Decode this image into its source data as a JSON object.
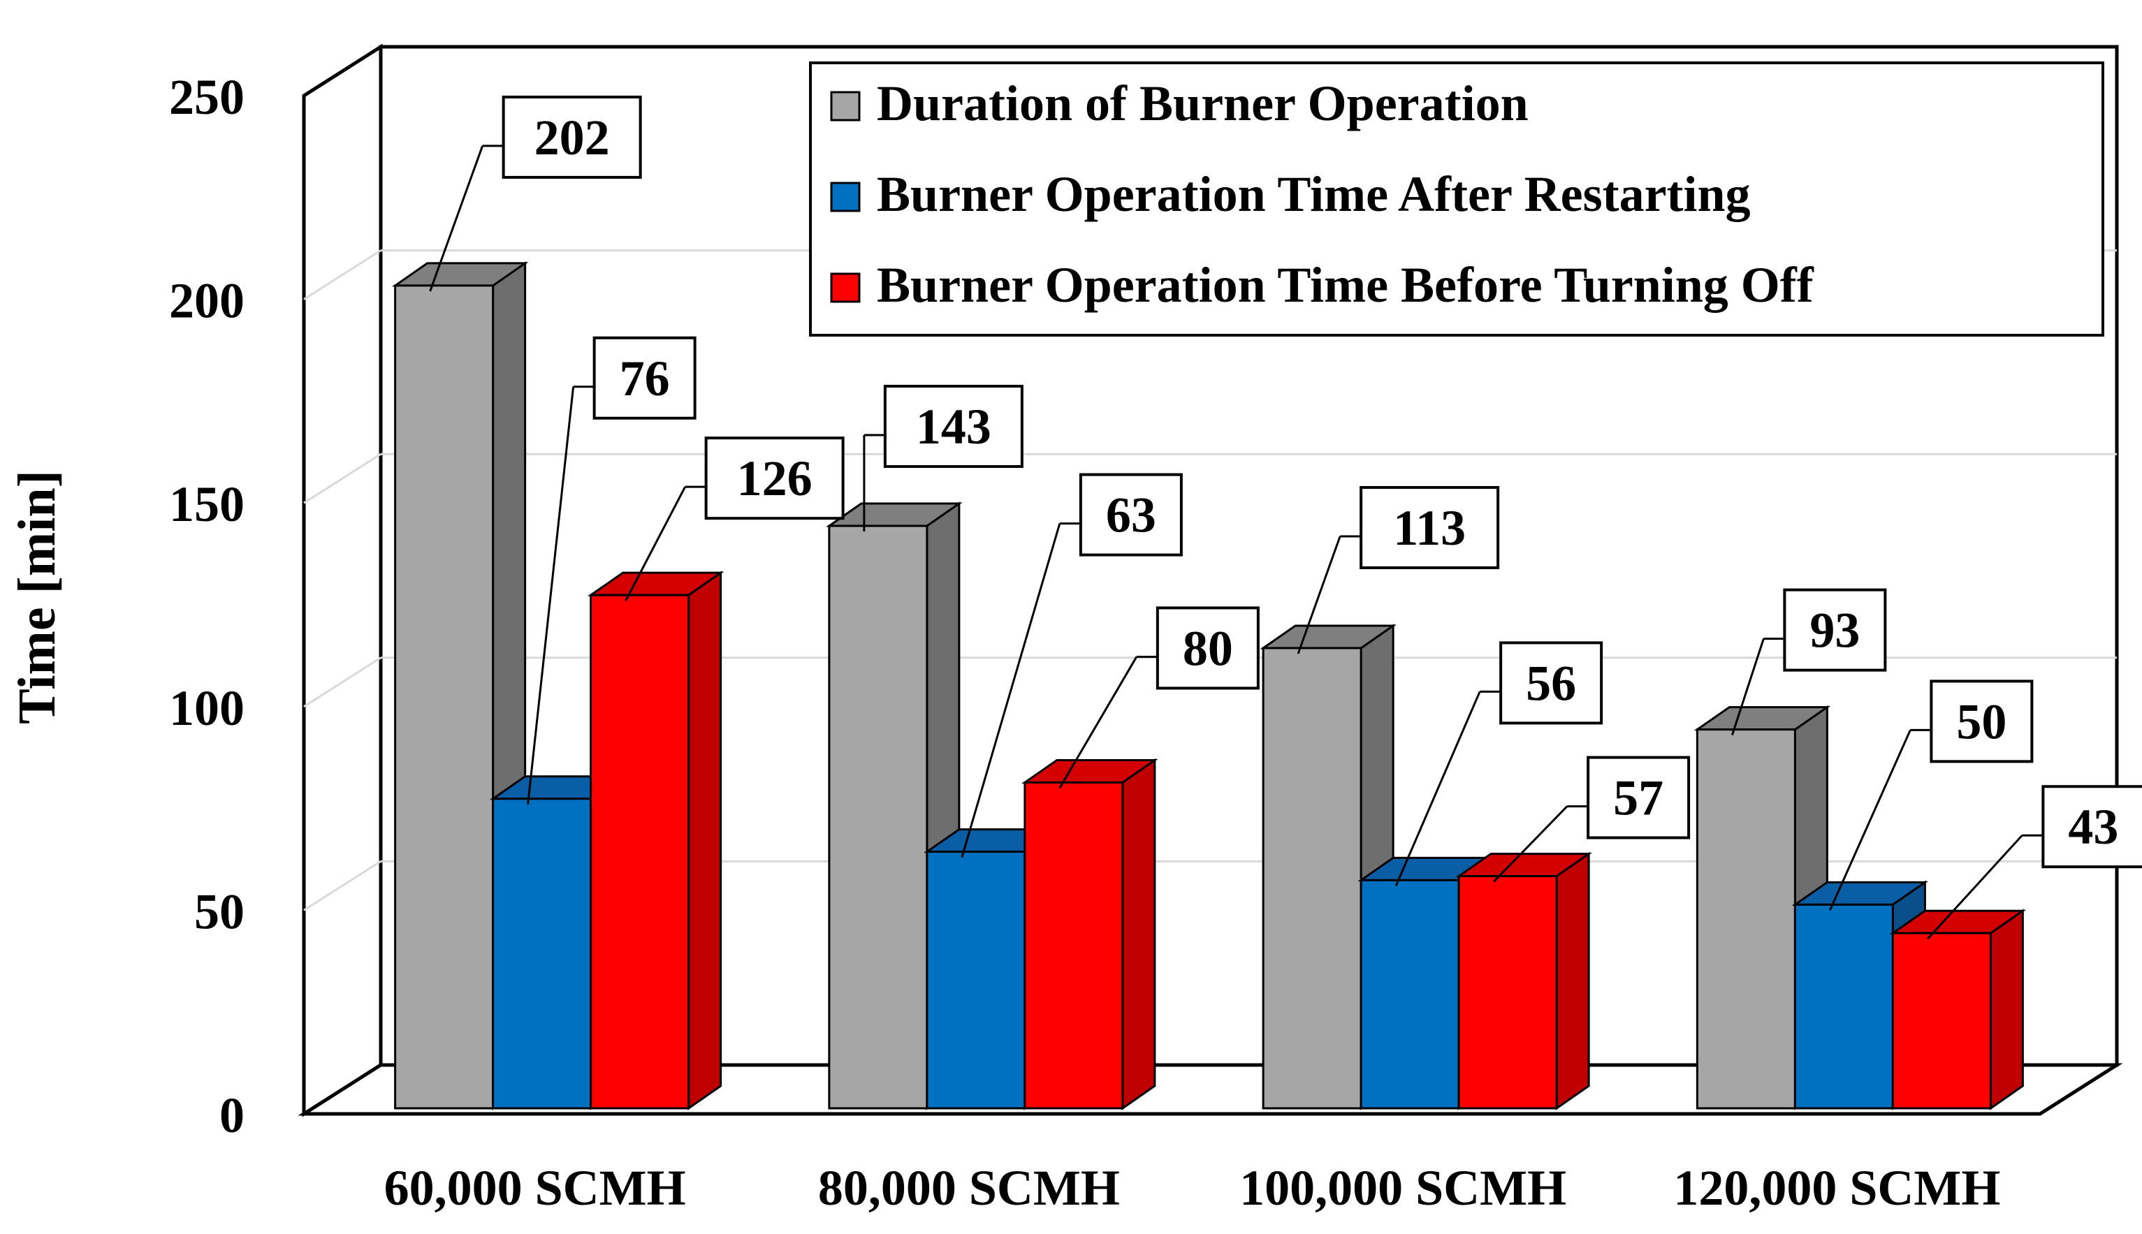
{
  "chart_data": {
    "type": "bar",
    "style": "3d-clustered-column",
    "title": "",
    "xlabel": "",
    "ylabel": "Time [min]",
    "ylim": [
      0,
      250
    ],
    "yticks": [
      0,
      50,
      100,
      150,
      200,
      250
    ],
    "categories": [
      "60,000 SCMH",
      "80,000 SCMH",
      "100,000 SCMH",
      "120,000 SCMH"
    ],
    "series": [
      {
        "name": "Duration of Burner Operation",
        "values": [
          202,
          143,
          113,
          93
        ],
        "color": "#a6a6a6",
        "side_color": "#6e6e6e",
        "top_color": "#7f7f7f"
      },
      {
        "name": "Burner Operation Time After Restarting",
        "values": [
          76,
          63,
          56,
          50
        ],
        "color": "#0070c0",
        "side_color": "#0a4f8a",
        "top_color": "#0a5ea5"
      },
      {
        "name": "Burner Operation Time Before Turning Off",
        "values": [
          126,
          80,
          57,
          43
        ],
        "color": "#ff0000",
        "side_color": "#c00000",
        "top_color": "#d40000"
      }
    ],
    "data_labels": true,
    "grid": true,
    "legend_position": "top-right"
  }
}
